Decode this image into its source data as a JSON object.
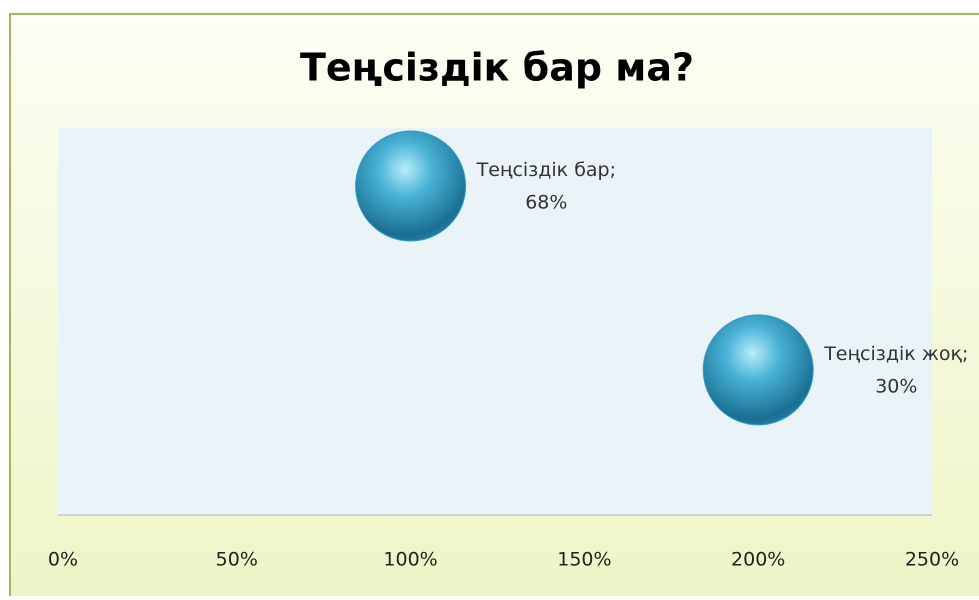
{
  "chart_data": {
    "type": "scatter",
    "title": "Теңсіздік бар ма?",
    "categories": [
      "Теңсіздік бар",
      "Теңсіздік жоқ"
    ],
    "label_separator": ";",
    "x": [
      100,
      200
    ],
    "values": [
      68,
      30
    ],
    "value_labels": [
      "68%",
      "30%"
    ],
    "color": "#2f9cc4",
    "xlim": [
      0,
      250
    ],
    "xticks": [
      {
        "value": 0,
        "label": "0%"
      },
      {
        "value": 50,
        "label": "50%"
      },
      {
        "value": 100,
        "label": "100%"
      },
      {
        "value": 150,
        "label": "150%"
      },
      {
        "value": 200,
        "label": "200%"
      },
      {
        "value": 250,
        "label": "250%"
      }
    ],
    "ylim": [
      0,
      80
    ]
  }
}
